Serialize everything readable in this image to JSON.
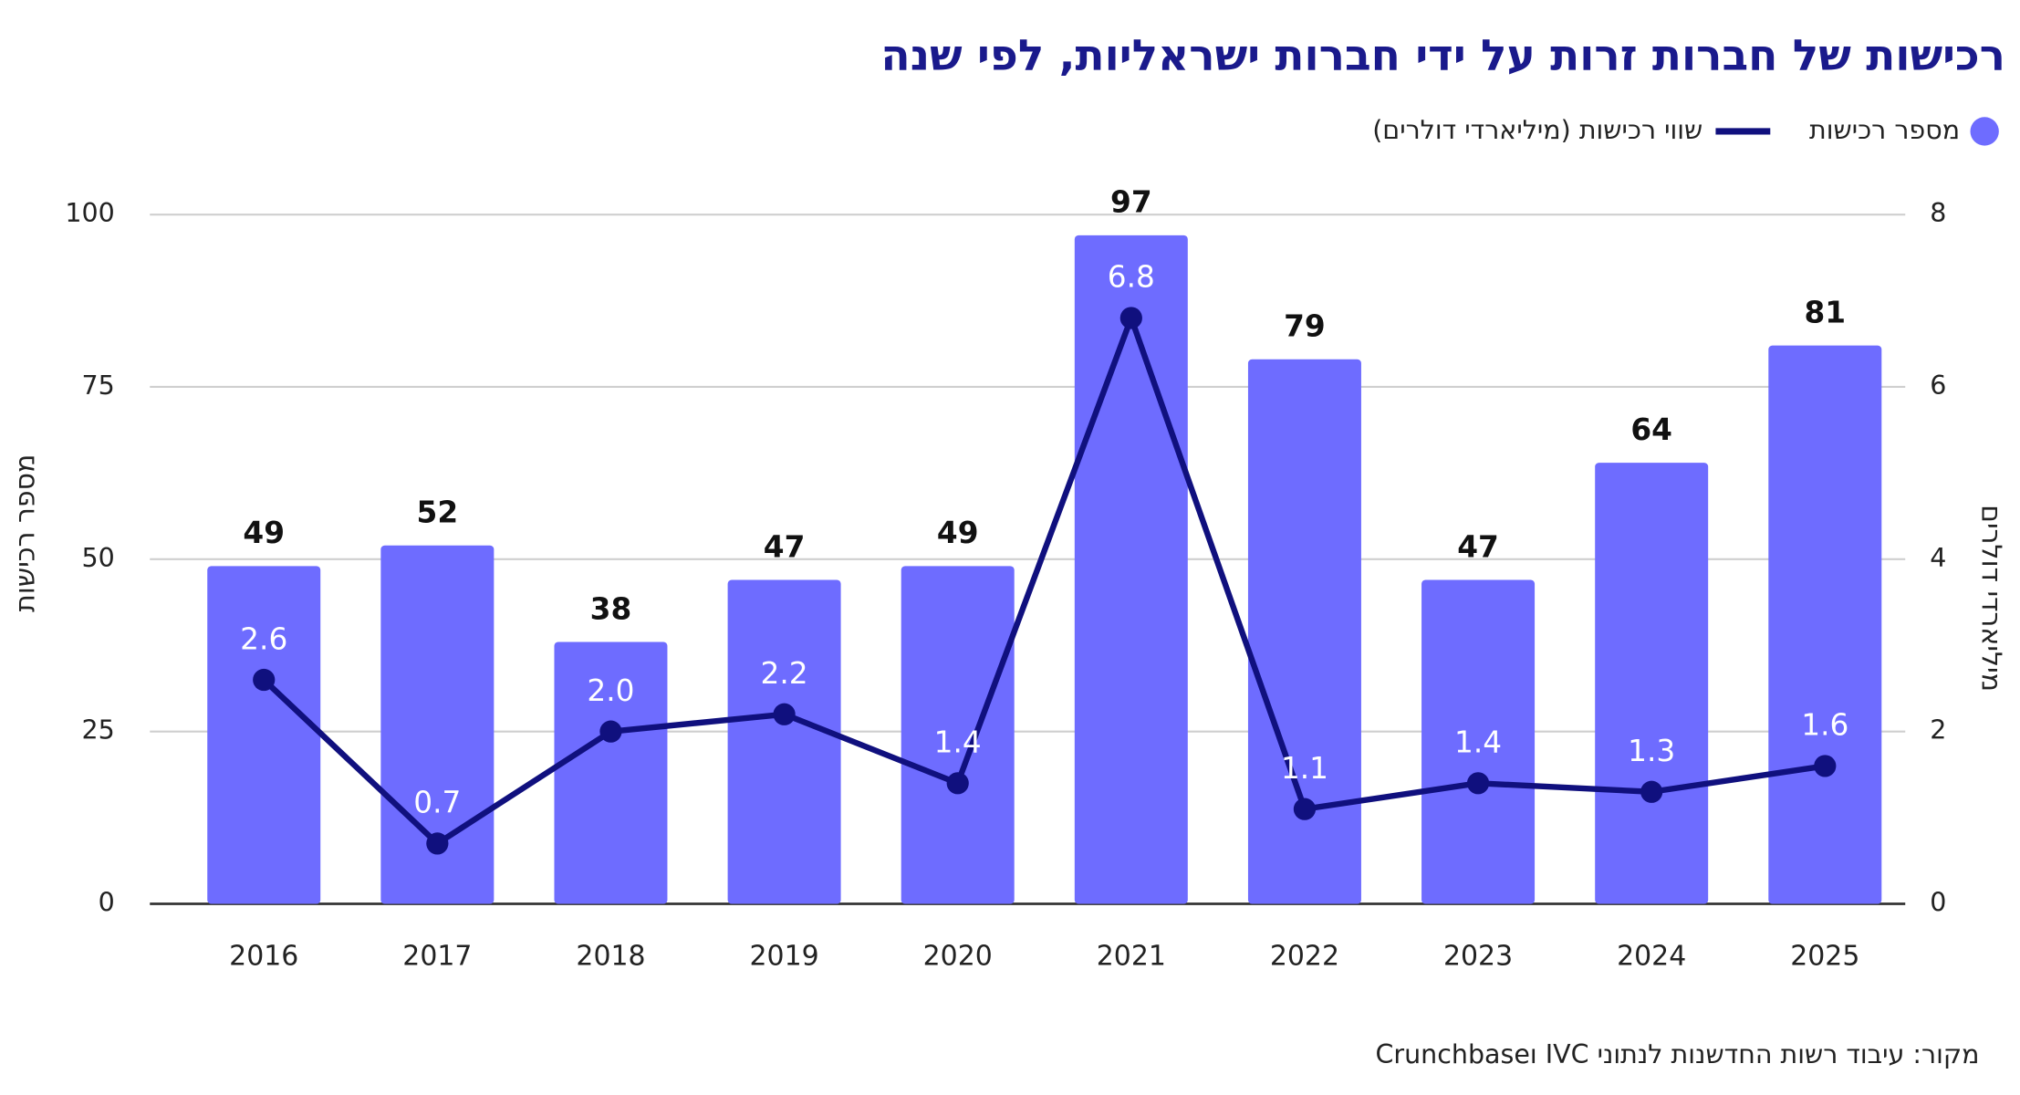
{
  "chart_data": {
    "type": "bar",
    "title": "רכישות של חברות זרות על ידי חברות ישראליות, לפי שנה",
    "source": "מקור: עיבוד רשות החדשנות לנתוני IVC וCrunchbase",
    "y_label": "מספר רכישות",
    "y2_label": "מיליארדי דולרים",
    "categories": [
      "2016",
      "2017",
      "2018",
      "2019",
      "2020",
      "2021",
      "2022",
      "2023",
      "2024",
      "2025"
    ],
    "series": [
      {
        "name": "מספר רכישות",
        "type": "bar",
        "color": "#6e6cff",
        "values": [
          49,
          52,
          38,
          47,
          49,
          97,
          79,
          47,
          64,
          81
        ]
      },
      {
        "name": "שווי רכישות (מיליארדי דולרים)",
        "type": "line",
        "axis": "y2",
        "color": "#10107e",
        "values": [
          2.6,
          0.7,
          2.0,
          2.2,
          1.4,
          6.8,
          1.1,
          1.4,
          1.3,
          1.6
        ],
        "value_labels": [
          "2.6",
          "0.7",
          "2.0",
          "2.2",
          "1.4",
          "6.8",
          "1.1",
          "1.4",
          "1.3",
          "1.6"
        ]
      }
    ],
    "ylim": [
      0,
      100
    ],
    "yticks": [
      0,
      25,
      50,
      75,
      100
    ],
    "y2lim": [
      0,
      8
    ],
    "y2ticks": [
      0,
      2,
      4,
      6,
      8
    ],
    "grid": true
  }
}
